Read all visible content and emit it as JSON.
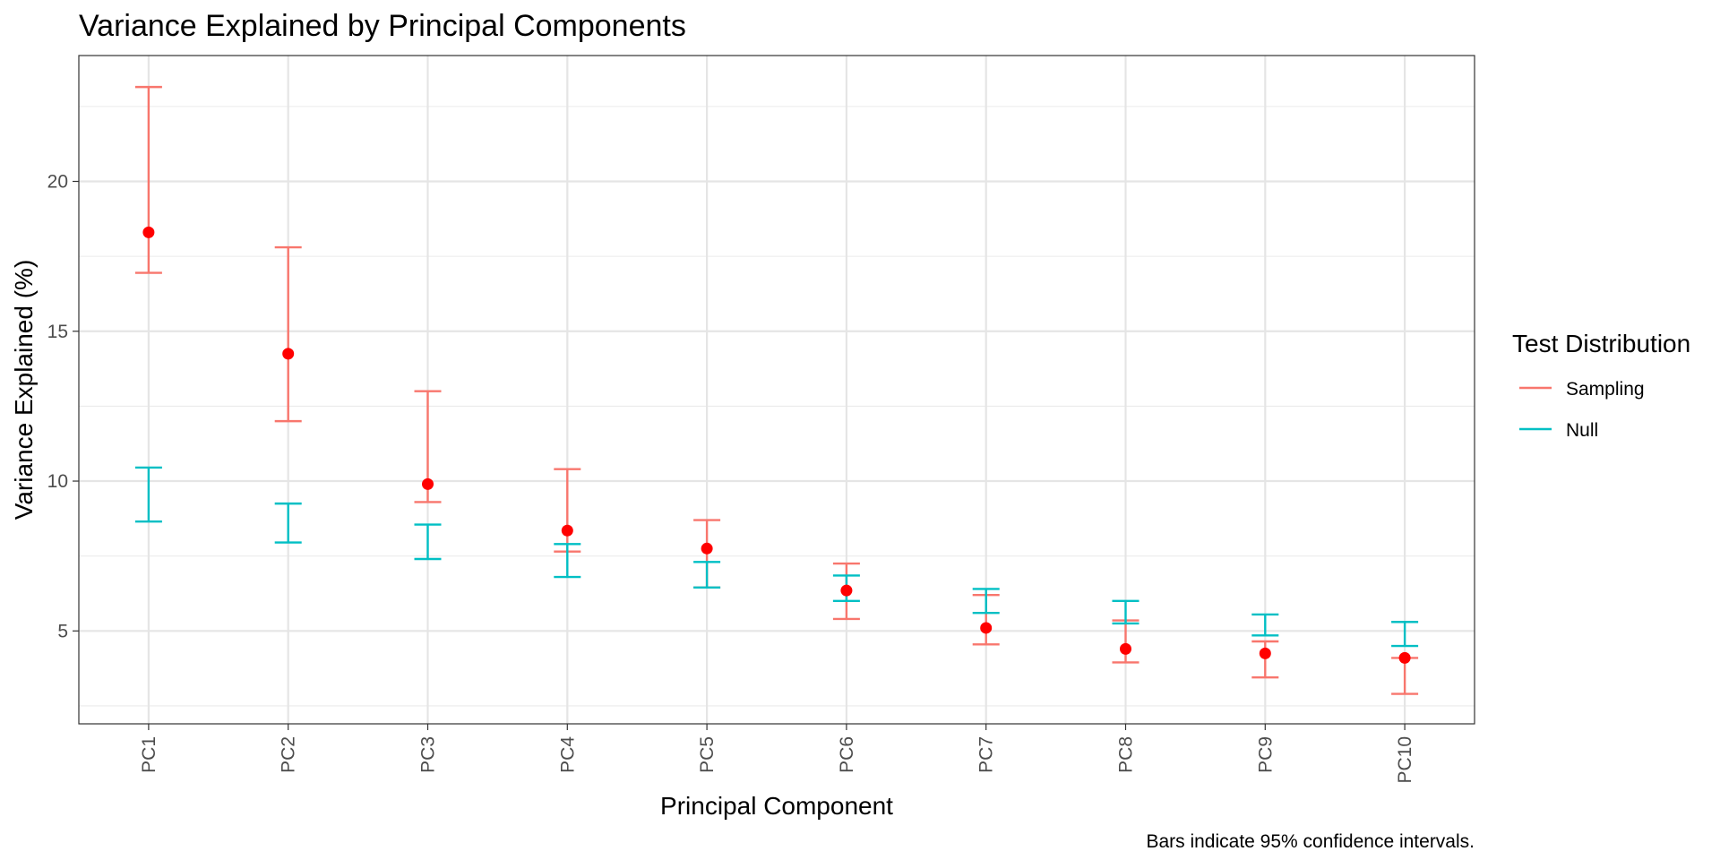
{
  "chart_data": {
    "type": "errorbar",
    "title": "Variance Explained by Principal Components",
    "xlabel": "Principal Component",
    "ylabel": "Variance Explained (%)",
    "caption": "Bars indicate 95% confidence intervals.",
    "categories": [
      "PC1",
      "PC2",
      "PC3",
      "PC4",
      "PC5",
      "PC6",
      "PC7",
      "PC8",
      "PC9",
      "PC10"
    ],
    "ylim": [
      1.9,
      24.2
    ],
    "yticks": [
      5,
      10,
      15,
      20
    ],
    "ytick_labels": [
      "5",
      "10",
      "15",
      "20"
    ],
    "grid": true,
    "legend": {
      "title": "Test Distribution",
      "position": "right",
      "entries": [
        "Sampling",
        "Null"
      ]
    },
    "series": [
      {
        "name": "Sampling",
        "color": "#F8766D",
        "lower": [
          16.95,
          12.0,
          9.3,
          7.65,
          6.45,
          5.4,
          4.55,
          3.95,
          3.45,
          2.9
        ],
        "upper": [
          23.15,
          17.8,
          13.0,
          10.4,
          8.7,
          7.25,
          6.2,
          5.35,
          4.65,
          4.1
        ]
      },
      {
        "name": "Null",
        "color": "#00BFC4",
        "lower": [
          8.65,
          7.95,
          7.4,
          6.8,
          6.45,
          6.0,
          5.6,
          5.25,
          4.85,
          4.5
        ],
        "upper": [
          10.45,
          9.25,
          8.55,
          7.9,
          7.3,
          6.85,
          6.4,
          6.0,
          5.55,
          5.3
        ]
      }
    ],
    "points": {
      "color": "#FF0000",
      "values": [
        18.3,
        14.25,
        9.9,
        8.35,
        7.75,
        6.35,
        5.1,
        4.4,
        4.25,
        4.1
      ]
    }
  }
}
